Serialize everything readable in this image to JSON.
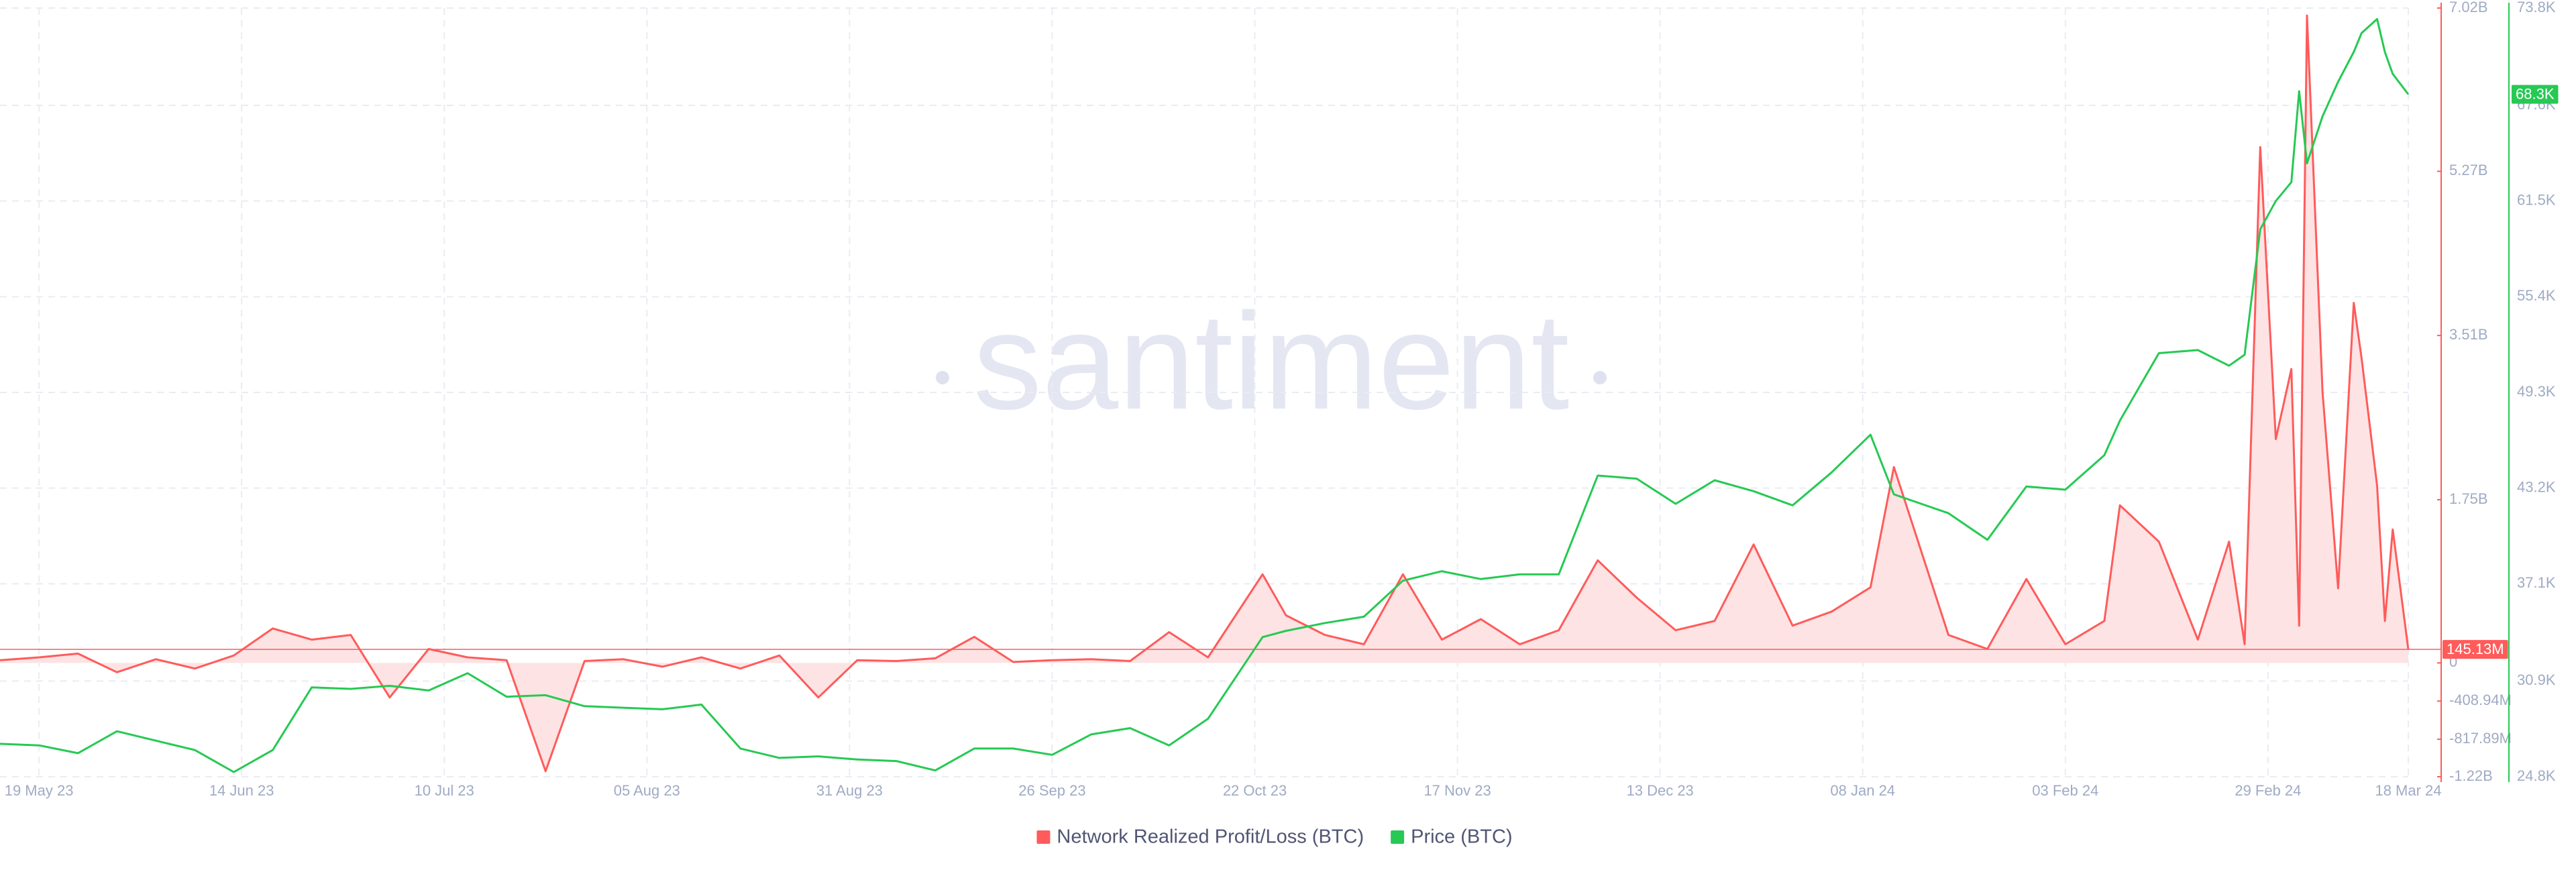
{
  "chart_data": {
    "type": "line",
    "watermark": "santiment",
    "x": [
      "2023-05-14",
      "2023-05-19",
      "2023-05-24",
      "2023-05-29",
      "2023-06-03",
      "2023-06-08",
      "2023-06-13",
      "2023-06-18",
      "2023-06-23",
      "2023-06-28",
      "2023-07-03",
      "2023-07-08",
      "2023-07-13",
      "2023-07-18",
      "2023-07-23",
      "2023-07-28",
      "2023-08-02",
      "2023-08-07",
      "2023-08-12",
      "2023-08-17",
      "2023-08-22",
      "2023-08-27",
      "2023-09-01",
      "2023-09-06",
      "2023-09-11",
      "2023-09-16",
      "2023-09-21",
      "2023-09-26",
      "2023-10-01",
      "2023-10-06",
      "2023-10-11",
      "2023-10-16",
      "2023-10-23",
      "2023-10-26",
      "2023-10-31",
      "2023-11-05",
      "2023-11-10",
      "2023-11-15",
      "2023-11-20",
      "2023-11-25",
      "2023-11-30",
      "2023-12-05",
      "2023-12-10",
      "2023-12-15",
      "2023-12-20",
      "2023-12-25",
      "2023-12-30",
      "2024-01-04",
      "2024-01-09",
      "2024-01-12",
      "2024-01-19",
      "2024-01-24",
      "2024-01-29",
      "2024-02-03",
      "2024-02-08",
      "2024-02-10",
      "2024-02-15",
      "2024-02-20",
      "2024-02-24",
      "2024-02-26",
      "2024-02-28",
      "2024-03-01",
      "2024-03-03",
      "2024-03-04",
      "2024-03-05",
      "2024-03-07",
      "2024-03-09",
      "2024-03-11",
      "2024-03-12",
      "2024-03-14",
      "2024-03-15",
      "2024-03-16",
      "2024-03-18"
    ],
    "xlim": [
      "2023-05-14",
      "2024-03-18"
    ],
    "xticks": [
      {
        "value": "2023-05-19",
        "label": "19 May 23"
      },
      {
        "value": "2023-06-14",
        "label": "14 Jun 23"
      },
      {
        "value": "2023-07-10",
        "label": "10 Jul 23"
      },
      {
        "value": "2023-08-05",
        "label": "05 Aug 23"
      },
      {
        "value": "2023-08-31",
        "label": "31 Aug 23"
      },
      {
        "value": "2023-09-26",
        "label": "26 Sep 23"
      },
      {
        "value": "2023-10-22",
        "label": "22 Oct 23"
      },
      {
        "value": "2023-11-17",
        "label": "17 Nov 23"
      },
      {
        "value": "2023-12-13",
        "label": "13 Dec 23"
      },
      {
        "value": "2024-01-08",
        "label": "08 Jan 24"
      },
      {
        "value": "2024-02-03",
        "label": "03 Feb 24"
      },
      {
        "value": "2024-02-29",
        "label": "29 Feb 24"
      },
      {
        "value": "2024-03-18",
        "label": "18 Mar 24"
      }
    ],
    "ylim": [
      24800,
      73800
    ],
    "yticks": [
      {
        "value": 24800,
        "label": "24.8K"
      },
      {
        "value": 30900,
        "label": "30.9K"
      },
      {
        "value": 37100,
        "label": "37.1K"
      },
      {
        "value": 43200,
        "label": "43.2K"
      },
      {
        "value": 49300,
        "label": "49.3K"
      },
      {
        "value": 55400,
        "label": "55.4K"
      },
      {
        "value": 61500,
        "label": "61.5K"
      },
      {
        "value": 67600,
        "label": "67.6K"
      },
      {
        "value": 73800,
        "label": "73.8K"
      }
    ],
    "y2lim": [
      -1220000000,
      7020000000
    ],
    "y2ticks": [
      {
        "value": -1220000000,
        "label": "-1.22B"
      },
      {
        "value": -817890000,
        "label": "-817.89M"
      },
      {
        "value": -408940000,
        "label": "-408.94M"
      },
      0,
      {
        "value": 1750000000,
        "label": "1.75B"
      },
      {
        "value": 3510000000,
        "label": "3.51B"
      },
      {
        "value": 5270000000,
        "label": "5.27B"
      },
      {
        "value": 7020000000,
        "label": "7.02B"
      }
    ],
    "grid": true,
    "legend": "bottom",
    "series": [
      {
        "name": "Network Realized Profit/Loss (BTC)",
        "color": "#ff5b5b",
        "area_color": "#fde3e3",
        "axis": "y2",
        "current_label": "145.13M",
        "values": [
          30000000,
          60000000,
          100000000,
          -100000000,
          40000000,
          -60000000,
          80000000,
          370000000,
          250000000,
          300000000,
          -370000000,
          150000000,
          60000000,
          30000000,
          -1160000000,
          20000000,
          40000000,
          -40000000,
          60000000,
          -60000000,
          80000000,
          -370000000,
          30000000,
          20000000,
          50000000,
          280000000,
          10000000,
          30000000,
          40000000,
          20000000,
          330000000,
          60000000,
          950000000,
          510000000,
          300000000,
          200000000,
          950000000,
          250000000,
          470000000,
          200000000,
          350000000,
          1100000000,
          700000000,
          350000000,
          450000000,
          1270000000,
          400000000,
          550000000,
          810000000,
          2100000000,
          300000000,
          150000000,
          900000000,
          200000000,
          450000000,
          1690000000,
          1300000000,
          250000000,
          1300000000,
          200000000,
          5530000000,
          2400000000,
          3150000000,
          400000000,
          6940000000,
          2900000000,
          800000000,
          3860000000,
          3270000000,
          1900000000,
          450000000,
          1430000000,
          145130000
        ]
      },
      {
        "name": "Price (BTC)",
        "color": "#26c953",
        "axis": "y",
        "current_label": "68.3K",
        "values": [
          26900,
          26800,
          26300,
          27700,
          27100,
          26500,
          25100,
          26500,
          30500,
          30400,
          30600,
          30300,
          31400,
          29900,
          30000,
          29300,
          29200,
          29100,
          29400,
          26600,
          26000,
          26100,
          25900,
          25800,
          25200,
          26600,
          26600,
          26200,
          27500,
          27900,
          26800,
          28500,
          33700,
          34100,
          34600,
          35000,
          37300,
          37900,
          37400,
          37700,
          37700,
          44000,
          43800,
          42200,
          43700,
          43000,
          42100,
          44200,
          46600,
          42800,
          41600,
          39900,
          43300,
          43100,
          45300,
          47500,
          51800,
          52000,
          51000,
          51700,
          59700,
          61500,
          62700,
          68500,
          63900,
          66900,
          69100,
          71000,
          72200,
          73100,
          71000,
          69600,
          68300
        ]
      }
    ]
  }
}
